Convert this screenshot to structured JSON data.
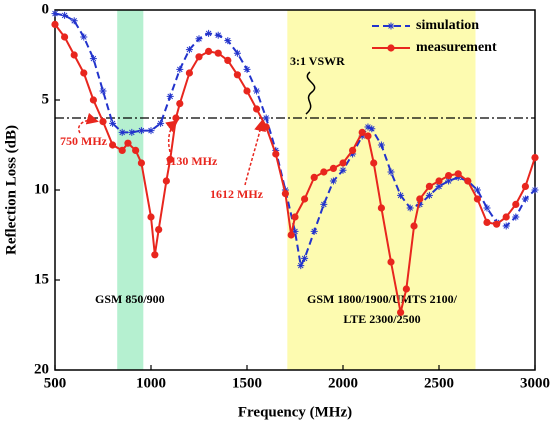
{
  "chart_data": {
    "type": "line",
    "x_label": "Frequency (MHz)",
    "y_label": "Reflection Loss (dB)",
    "xlim": [
      500,
      3000
    ],
    "xticks": [
      500,
      1000,
      1500,
      2000,
      2500,
      3000
    ],
    "ylim": [
      0,
      20
    ],
    "yticks": [
      0,
      5,
      10,
      15,
      20
    ],
    "y_inverted": true,
    "legend": "top-right",
    "reference_line": {
      "value": 6,
      "label": "3:1 VSWR"
    },
    "bands": [
      {
        "from": 824,
        "to": 960,
        "color": "#b5f0d0",
        "label": "GSM 850/900"
      },
      {
        "from": 1710,
        "to": 2690,
        "color": "#fdfbb0",
        "label": [
          "GSM 1800/1900/UMTS 2100/",
          "LTE 2300/2500"
        ]
      }
    ],
    "annotations": [
      "750 MHz",
      "1130 MHz",
      "1612 MHz"
    ],
    "series": [
      {
        "name": "simulation",
        "color": "#2233cc",
        "marker": "asterisk",
        "dash": true,
        "x": [
          500,
          550,
          600,
          650,
          700,
          750,
          800,
          850,
          900,
          950,
          1000,
          1050,
          1100,
          1150,
          1200,
          1250,
          1300,
          1350,
          1400,
          1450,
          1500,
          1550,
          1600,
          1650,
          1700,
          1750,
          1780,
          1800,
          1850,
          1900,
          1950,
          2000,
          2050,
          2100,
          2130,
          2150,
          2200,
          2250,
          2300,
          2350,
          2400,
          2450,
          2500,
          2550,
          2600,
          2650,
          2700,
          2750,
          2800,
          2850,
          2900,
          2950,
          3000
        ],
        "values": [
          0.2,
          0.3,
          0.6,
          1.5,
          2.7,
          4.5,
          6.3,
          6.8,
          6.8,
          6.7,
          6.7,
          6.3,
          4.8,
          3.3,
          2.2,
          1.6,
          1.3,
          1.4,
          1.7,
          2.4,
          3.3,
          4.5,
          6.0,
          7.8,
          10.0,
          12.3,
          14.2,
          13.8,
          12.3,
          10.8,
          9.5,
          8.9,
          8.0,
          7.0,
          6.5,
          6.6,
          7.5,
          9.0,
          10.3,
          11.0,
          10.8,
          10.3,
          9.8,
          9.5,
          9.3,
          9.5,
          10.0,
          11.0,
          11.8,
          12.0,
          11.5,
          10.5,
          10.0
        ]
      },
      {
        "name": "measurement",
        "color": "#e8261e",
        "marker": "circle",
        "dash": false,
        "x": [
          500,
          550,
          600,
          650,
          700,
          750,
          800,
          850,
          880,
          920,
          950,
          1000,
          1020,
          1040,
          1080,
          1100,
          1130,
          1150,
          1200,
          1250,
          1300,
          1350,
          1400,
          1450,
          1500,
          1550,
          1600,
          1650,
          1700,
          1730,
          1750,
          1800,
          1850,
          1900,
          1950,
          2000,
          2050,
          2100,
          2130,
          2160,
          2200,
          2250,
          2300,
          2330,
          2370,
          2400,
          2450,
          2500,
          2550,
          2600,
          2650,
          2700,
          2750,
          2800,
          2850,
          2900,
          2950,
          3000
        ],
        "values": [
          0.8,
          1.5,
          2.5,
          3.5,
          5.0,
          6.2,
          7.5,
          7.8,
          7.4,
          7.8,
          8.5,
          11.5,
          13.6,
          12.2,
          9.5,
          8.3,
          6.0,
          5.2,
          3.5,
          2.6,
          2.3,
          2.4,
          2.8,
          3.6,
          4.5,
          5.5,
          6.5,
          8.0,
          10.2,
          12.5,
          11.5,
          10.5,
          9.3,
          9.0,
          8.8,
          8.5,
          7.8,
          6.8,
          7.0,
          8.5,
          11.0,
          14.0,
          16.8,
          15.5,
          12.0,
          10.5,
          9.8,
          9.5,
          9.2,
          9.1,
          9.5,
          10.5,
          11.8,
          11.9,
          11.5,
          10.8,
          9.8,
          8.2
        ]
      }
    ]
  }
}
